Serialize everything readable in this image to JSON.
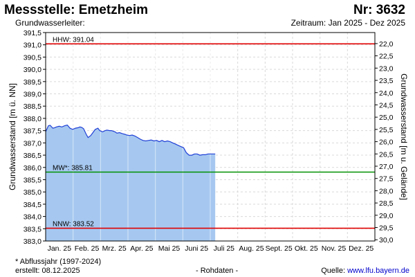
{
  "header": {
    "title": "Messstelle: Emetzheim",
    "number": "Nr: 3632",
    "aquifer": "Grundwasserleiter:",
    "period": "Zeitraum: Jan 2025 - Dez 2025"
  },
  "footer": {
    "note": "* Abflussjahr (1997-2024)",
    "created": "erstellt:  08.12.2025",
    "raw": "- Rohdaten -",
    "source_prefix": "Quelle: ",
    "source_link": "www.lfu.bayern.de"
  },
  "chart_data": {
    "type": "area",
    "ylabel": "Grundwasserstand [m ü. NN]",
    "ylabel_right": "Grundwasserstand [m u. Gelände]",
    "ylim": [
      383.0,
      391.5
    ],
    "y_ticks": [
      "391,5",
      "391,0",
      "390,5",
      "390,0",
      "389,5",
      "389,0",
      "388,5",
      "388,0",
      "387,5",
      "387,0",
      "386,5",
      "386,0",
      "385,5",
      "385,0",
      "384,5",
      "384,0",
      "383,5",
      "383,0"
    ],
    "y_ticks_right": [
      "22,0",
      "22,5",
      "23,0",
      "23,5",
      "24,0",
      "24,5",
      "25,0",
      "25,5",
      "26,0",
      "26,5",
      "27,0",
      "27,5",
      "28,0",
      "28,5",
      "29,0",
      "29,5",
      "30,0"
    ],
    "right_axis_first_value": 22.0,
    "right_axis_step": 0.5,
    "ground_level": 413.05,
    "x_ticks": [
      "Jan. 25",
      "Feb. 25",
      "Mrz. 25",
      "Apr. 25",
      "Mai 25",
      "Juni 25",
      "Juli 25",
      "Aug. 25",
      "Sept. 25",
      "Okt. 25",
      "Nov. 25",
      "Dez. 25"
    ],
    "grid": true,
    "area_color": "#a6c8f0",
    "line_color": "#1f3fd6",
    "series": [
      {
        "x": [
          0,
          3,
          5,
          8,
          10,
          12,
          15,
          18,
          21,
          24,
          27,
          30,
          33,
          36,
          38,
          40,
          42,
          45,
          47,
          50,
          53,
          55,
          58,
          60,
          63,
          66,
          68,
          71,
          73,
          75,
          77,
          79,
          82,
          85,
          88,
          90,
          93,
          96,
          99,
          102,
          105,
          108,
          111,
          114,
          117,
          120,
          123,
          126,
          129,
          132,
          135,
          138,
          141,
          144,
          147,
          150,
          153,
          156,
          159,
          162,
          165,
          168,
          171,
          174,
          177,
          180,
          182,
          184,
          186,
          188
        ],
        "values": [
          387.45,
          387.7,
          387.72,
          387.6,
          387.62,
          387.65,
          387.68,
          387.65,
          387.7,
          387.73,
          387.6,
          387.55,
          387.6,
          387.62,
          387.65,
          387.63,
          387.58,
          387.35,
          387.22,
          387.3,
          387.45,
          387.55,
          387.6,
          387.5,
          387.45,
          387.5,
          387.52,
          387.5,
          387.5,
          387.48,
          387.45,
          387.4,
          387.42,
          387.38,
          387.35,
          387.32,
          387.3,
          387.32,
          387.28,
          387.22,
          387.15,
          387.1,
          387.08,
          387.1,
          387.12,
          387.08,
          387.1,
          387.05,
          387.1,
          387.05,
          387.08,
          387.05,
          387.0,
          386.95,
          386.9,
          386.85,
          386.8,
          386.6,
          386.5,
          386.5,
          386.55,
          386.55,
          386.5,
          386.52,
          386.52,
          386.55,
          386.55,
          386.55,
          386.55,
          386.55
        ]
      }
    ],
    "x_unit": "day of year (0 = 1 Jan 2025)",
    "x_max": 365,
    "reference_lines": [
      {
        "label": "HHW: 391.04",
        "value": 391.04,
        "color": "#e00000"
      },
      {
        "label": "MW*: 385.81",
        "value": 385.81,
        "color": "#009000"
      },
      {
        "label": "NNW: 383.52",
        "value": 383.52,
        "color": "#e00000"
      }
    ]
  }
}
